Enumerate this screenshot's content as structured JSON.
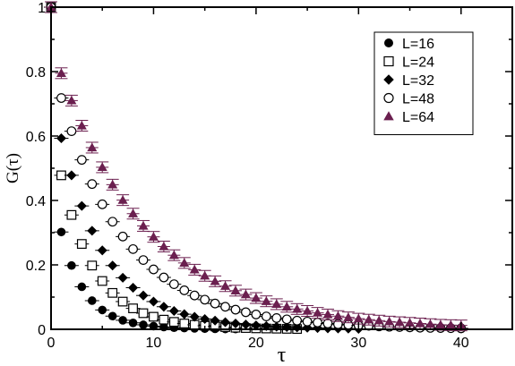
{
  "chart_data": {
    "type": "scatter",
    "title": "",
    "xlabel": "τ",
    "ylabel": "G(τ)",
    "xlim": [
      0,
      45
    ],
    "ylim": [
      0,
      1
    ],
    "x_ticks": [
      0,
      10,
      20,
      30,
      40
    ],
    "y_ticks": [
      0,
      0.2,
      0.4,
      0.6,
      0.8,
      1
    ],
    "y_tick_labels": [
      "0",
      "0.2",
      "0.4",
      "0.6",
      "0.8",
      "1"
    ],
    "grid": false,
    "legend_position": "top-right",
    "colors": {
      "black": "#000000",
      "purple": "#6b1f4f"
    },
    "series": [
      {
        "name": "L=16",
        "marker": "filled-circle",
        "color": "#000000",
        "x": [
          0,
          1,
          2,
          3,
          4,
          5,
          6,
          7,
          8,
          9,
          10,
          11,
          12,
          13,
          14,
          15,
          16,
          17,
          18
        ],
        "y": [
          1.0,
          0.302,
          0.198,
          0.132,
          0.089,
          0.06,
          0.041,
          0.028,
          0.02,
          0.014,
          0.01,
          0.007,
          0.005,
          0.004,
          0.003,
          0.002,
          0.0015,
          0.001,
          0.0008
        ]
      },
      {
        "name": "L=24",
        "marker": "open-square",
        "color": "#000000",
        "x": [
          0,
          1,
          2,
          3,
          4,
          5,
          6,
          7,
          8,
          9,
          10,
          11,
          12,
          13,
          14,
          15,
          16,
          17,
          18,
          19,
          20,
          21,
          22,
          23,
          24
        ],
        "y": [
          1.0,
          0.478,
          0.355,
          0.265,
          0.198,
          0.15,
          0.113,
          0.086,
          0.065,
          0.05,
          0.039,
          0.03,
          0.023,
          0.018,
          0.014,
          0.011,
          0.009,
          0.007,
          0.005,
          0.004,
          0.003,
          0.0025,
          0.002,
          0.0015,
          0.001
        ]
      },
      {
        "name": "L=32",
        "marker": "filled-diamond",
        "color": "#000000",
        "x": [
          0,
          1,
          2,
          3,
          4,
          5,
          6,
          7,
          8,
          9,
          10,
          11,
          12,
          13,
          14,
          15,
          16,
          17,
          18,
          19,
          20,
          21,
          22,
          23,
          24,
          25,
          26,
          27,
          28,
          29,
          30
        ],
        "y": [
          1.0,
          0.593,
          0.478,
          0.383,
          0.306,
          0.245,
          0.198,
          0.16,
          0.129,
          0.105,
          0.086,
          0.07,
          0.057,
          0.047,
          0.039,
          0.032,
          0.027,
          0.022,
          0.018,
          0.015,
          0.012,
          0.01,
          0.008,
          0.007,
          0.006,
          0.005,
          0.004,
          0.003,
          0.0025,
          0.002,
          0.0015
        ]
      },
      {
        "name": "L=48",
        "marker": "open-circle",
        "color": "#000000",
        "x": [
          0,
          1,
          2,
          3,
          4,
          5,
          6,
          7,
          8,
          9,
          10,
          11,
          12,
          13,
          14,
          15,
          16,
          17,
          18,
          19,
          20,
          21,
          22,
          23,
          24,
          25,
          26,
          27,
          28,
          29,
          30,
          31,
          32,
          33,
          34,
          35,
          36,
          37,
          38,
          39,
          40
        ],
        "y": [
          1.0,
          0.718,
          0.615,
          0.526,
          0.451,
          0.388,
          0.334,
          0.288,
          0.249,
          0.215,
          0.186,
          0.161,
          0.14,
          0.121,
          0.105,
          0.092,
          0.08,
          0.07,
          0.061,
          0.053,
          0.046,
          0.04,
          0.035,
          0.031,
          0.027,
          0.024,
          0.021,
          0.018,
          0.016,
          0.014,
          0.012,
          0.011,
          0.009,
          0.008,
          0.007,
          0.006,
          0.005,
          0.0045,
          0.004,
          0.0035,
          0.003
        ]
      },
      {
        "name": "L=64",
        "marker": "filled-triangle",
        "color": "#6b1f4f",
        "x": [
          0,
          1,
          2,
          3,
          4,
          5,
          6,
          7,
          8,
          9,
          10,
          11,
          12,
          13,
          14,
          15,
          16,
          17,
          18,
          19,
          20,
          21,
          22,
          23,
          24,
          25,
          26,
          27,
          28,
          29,
          30,
          31,
          32,
          33,
          34,
          35,
          36,
          37,
          38,
          39,
          40
        ],
        "y": [
          1.0,
          0.795,
          0.71,
          0.632,
          0.564,
          0.503,
          0.449,
          0.401,
          0.359,
          0.321,
          0.287,
          0.257,
          0.23,
          0.206,
          0.185,
          0.166,
          0.149,
          0.134,
          0.12,
          0.108,
          0.097,
          0.087,
          0.078,
          0.07,
          0.063,
          0.057,
          0.051,
          0.046,
          0.041,
          0.037,
          0.033,
          0.03,
          0.027,
          0.024,
          0.022,
          0.02,
          0.018,
          0.016,
          0.014,
          0.013,
          0.012
        ]
      }
    ]
  }
}
